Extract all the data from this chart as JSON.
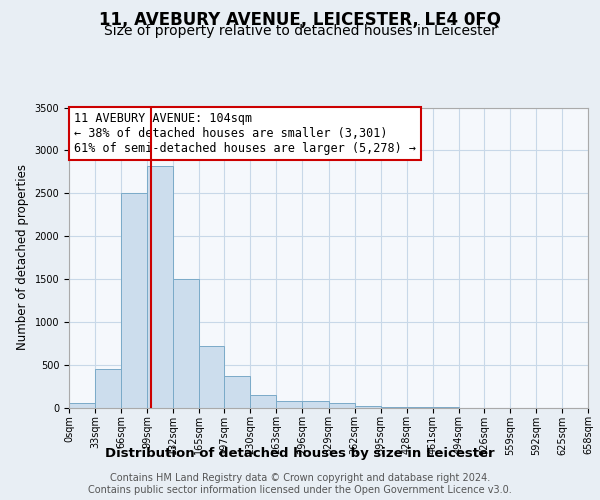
{
  "title": "11, AVEBURY AVENUE, LEICESTER, LE4 0FQ",
  "subtitle": "Size of property relative to detached houses in Leicester",
  "xlabel": "Distribution of detached houses by size in Leicester",
  "ylabel": "Number of detached properties",
  "footer_line1": "Contains HM Land Registry data © Crown copyright and database right 2024.",
  "footer_line2": "Contains public sector information licensed under the Open Government Licence v3.0.",
  "annotation_line1": "11 AVEBURY AVENUE: 104sqm",
  "annotation_line2": "← 38% of detached houses are smaller (3,301)",
  "annotation_line3": "61% of semi-detached houses are larger (5,278) →",
  "property_size_sqm": 104,
  "bin_edges": [
    0,
    33,
    66,
    99,
    132,
    165,
    197,
    230,
    263,
    296,
    329,
    362,
    395,
    428,
    461,
    494,
    526,
    559,
    592,
    625,
    658
  ],
  "bar_heights": [
    50,
    450,
    2500,
    2820,
    1500,
    720,
    370,
    150,
    80,
    80,
    50,
    20,
    10,
    5,
    5,
    0,
    0,
    0,
    0,
    0
  ],
  "bar_color": "#ccdded",
  "bar_edge_color": "#7aaac8",
  "vline_color": "#cc0000",
  "vline_x": 104,
  "ylim": [
    0,
    3500
  ],
  "xlim": [
    0,
    658
  ],
  "background_color": "#e8eef4",
  "plot_background": "#f5f8fc",
  "grid_color": "#c8d8e8",
  "title_fontsize": 12,
  "subtitle_fontsize": 10,
  "xlabel_fontsize": 9.5,
  "ylabel_fontsize": 8.5,
  "tick_fontsize": 7,
  "annotation_fontsize": 8.5,
  "footer_fontsize": 7
}
